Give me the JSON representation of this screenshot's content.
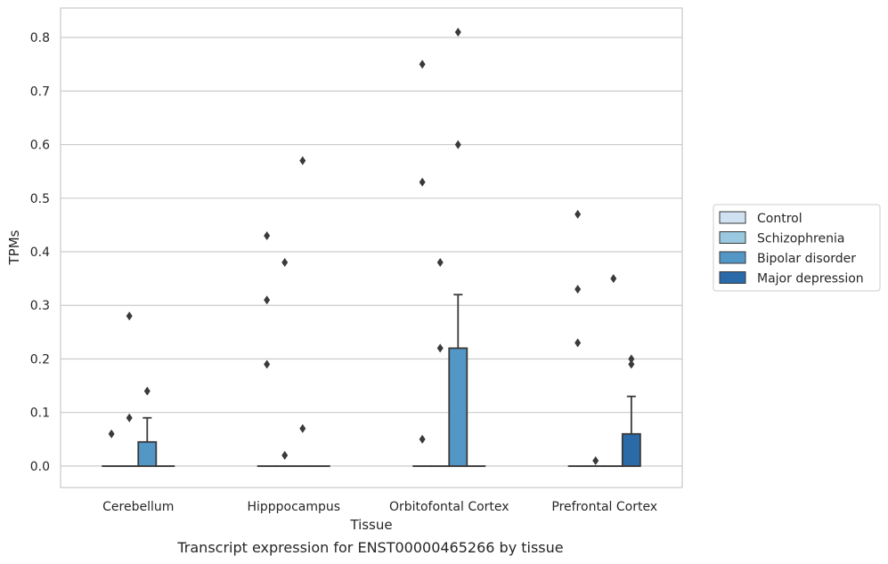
{
  "chart_data": {
    "type": "box",
    "title": "",
    "caption": "Transcript expression for ENST00000465266 by tissue",
    "xlabel": "Tissue",
    "ylabel": "TPMs",
    "ylim": [
      -0.04,
      0.855
    ],
    "yticks": [
      0.0,
      0.1,
      0.2,
      0.3,
      0.4,
      0.5,
      0.6,
      0.7,
      0.8
    ],
    "ytick_labels": [
      "0.0",
      "0.1",
      "0.2",
      "0.3",
      "0.4",
      "0.5",
      "0.6",
      "0.7",
      "0.8"
    ],
    "grid": "horizontal",
    "legend_position": "right",
    "categories": [
      "Cerebellum",
      "Hipppocampus",
      "Orbitofontal Cortex",
      "Prefrontal Cortex"
    ],
    "series": [
      {
        "name": "Control",
        "color": "#d0e1f2",
        "boxes": [
          {
            "q1": 0,
            "median": 0,
            "q3": 0,
            "whisker_low": 0,
            "whisker_high": 0,
            "outliers": [
              0.06
            ]
          },
          {
            "q1": 0,
            "median": 0,
            "q3": 0,
            "whisker_low": 0,
            "whisker_high": 0,
            "outliers": [
              0.19,
              0.31,
              0.43
            ]
          },
          {
            "q1": 0,
            "median": 0,
            "q3": 0,
            "whisker_low": 0,
            "whisker_high": 0,
            "outliers": [
              0.05,
              0.53,
              0.75
            ]
          },
          {
            "q1": 0,
            "median": 0,
            "q3": 0,
            "whisker_low": 0,
            "whisker_high": 0,
            "outliers": [
              0.23,
              0.33,
              0.47
            ]
          }
        ]
      },
      {
        "name": "Schizophrenia",
        "color": "#9ac8e0",
        "boxes": [
          {
            "q1": 0,
            "median": 0,
            "q3": 0,
            "whisker_low": 0,
            "whisker_high": 0,
            "outliers": [
              0.09,
              0.28
            ]
          },
          {
            "q1": 0,
            "median": 0,
            "q3": 0,
            "whisker_low": 0,
            "whisker_high": 0,
            "outliers": [
              0.02,
              0.38
            ]
          },
          {
            "q1": 0,
            "median": 0,
            "q3": 0,
            "whisker_low": 0,
            "whisker_high": 0,
            "outliers": [
              0.22,
              0.38
            ]
          },
          {
            "q1": 0,
            "median": 0,
            "q3": 0,
            "whisker_low": 0,
            "whisker_high": 0,
            "outliers": [
              0.01
            ]
          }
        ]
      },
      {
        "name": "Bipolar disorder",
        "color": "#5297c6",
        "boxes": [
          {
            "q1": 0,
            "median": 0,
            "q3": 0.045,
            "whisker_low": 0,
            "whisker_high": 0.09,
            "outliers": [
              0.14
            ]
          },
          {
            "q1": 0,
            "median": 0,
            "q3": 0,
            "whisker_low": 0,
            "whisker_high": 0,
            "outliers": [
              0.07,
              0.57
            ]
          },
          {
            "q1": 0,
            "median": 0,
            "q3": 0.22,
            "whisker_low": 0,
            "whisker_high": 0.32,
            "outliers": [
              0.6,
              0.81
            ]
          },
          {
            "q1": 0,
            "median": 0,
            "q3": 0,
            "whisker_low": 0,
            "whisker_high": 0,
            "outliers": [
              0.35
            ]
          }
        ]
      },
      {
        "name": "Major depression",
        "color": "#2a6aa8",
        "boxes": [
          {
            "q1": 0,
            "median": 0,
            "q3": 0,
            "whisker_low": 0,
            "whisker_high": 0,
            "outliers": []
          },
          {
            "q1": 0,
            "median": 0,
            "q3": 0,
            "whisker_low": 0,
            "whisker_high": 0,
            "outliers": []
          },
          {
            "q1": 0,
            "median": 0,
            "q3": 0,
            "whisker_low": 0,
            "whisker_high": 0,
            "outliers": []
          },
          {
            "q1": 0,
            "median": 0,
            "q3": 0.06,
            "whisker_low": 0,
            "whisker_high": 0.13,
            "outliers": [
              0.19,
              0.2
            ]
          }
        ]
      }
    ]
  }
}
